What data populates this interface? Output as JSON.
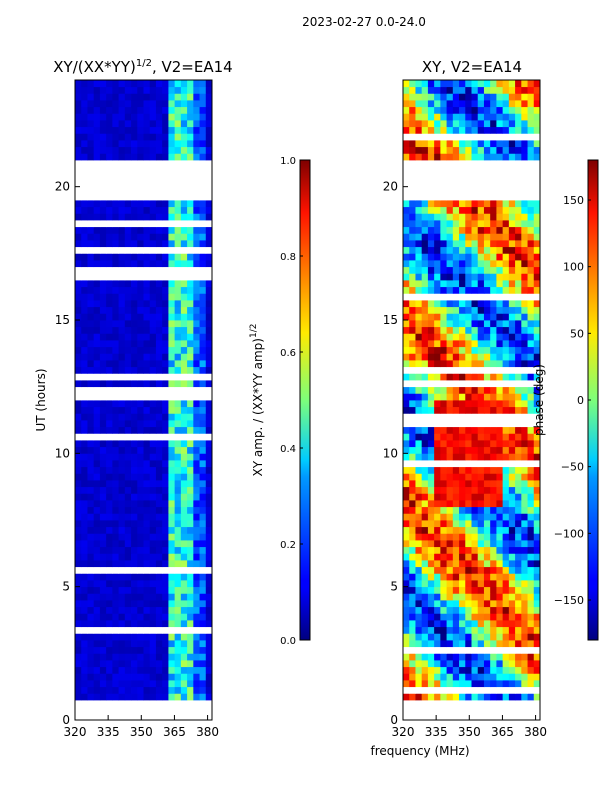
{
  "chart_data": [
    {
      "type": "heatmap",
      "suptitle": "2023-02-27 0.0-24.0",
      "title": "XY/(XX*YY)",
      "title_exp": "1/2",
      "title_suffix": ", V2=EA14",
      "ylabel": "UT (hours)",
      "xticks": [
        "320",
        "335",
        "350",
        "365",
        "380"
      ],
      "xtick_values": [
        320,
        335,
        350,
        365,
        380
      ],
      "yticks": [
        "0",
        "5",
        "10",
        "15",
        "20"
      ],
      "ytick_values": [
        0,
        5,
        10,
        15,
        20
      ],
      "xlim": [
        320,
        382
      ],
      "ylim": [
        0,
        24
      ],
      "flagged_intervals_hours": [
        [
          0.35,
          0.8
        ],
        [
          19.6,
          21.0
        ]
      ],
      "colorbar": {
        "label": "XY amp. / (XX*YY amp)",
        "label_exp": "1/2",
        "ticks": [
          "0.0",
          "0.2",
          "0.4",
          "0.6",
          "0.8",
          "1.0"
        ],
        "tick_values": [
          0.0,
          0.2,
          0.4,
          0.6,
          0.8,
          1.0
        ],
        "range": [
          0,
          1
        ]
      }
    },
    {
      "type": "heatmap",
      "title": "XY, V2=EA14",
      "xlabel": "frequency (MHz)",
      "xticks": [
        "320",
        "335",
        "350",
        "365",
        "380"
      ],
      "xtick_values": [
        320,
        335,
        350,
        365,
        380
      ],
      "yticks": [
        "0",
        "5",
        "10",
        "15",
        "20"
      ],
      "ytick_values": [
        0,
        5,
        10,
        15,
        20
      ],
      "xlim": [
        320,
        382
      ],
      "ylim": [
        0,
        24
      ],
      "flagged_intervals_hours": [
        [
          0.35,
          0.8
        ],
        [
          19.6,
          21.0
        ]
      ],
      "colorbar": {
        "label": "phase (deg)",
        "ticks": [
          "−150",
          "−100",
          "−50",
          "0",
          "50",
          "100",
          "150"
        ],
        "tick_values": [
          -150,
          -100,
          -50,
          0,
          50,
          100,
          150
        ],
        "range": [
          -180,
          180
        ]
      }
    }
  ]
}
